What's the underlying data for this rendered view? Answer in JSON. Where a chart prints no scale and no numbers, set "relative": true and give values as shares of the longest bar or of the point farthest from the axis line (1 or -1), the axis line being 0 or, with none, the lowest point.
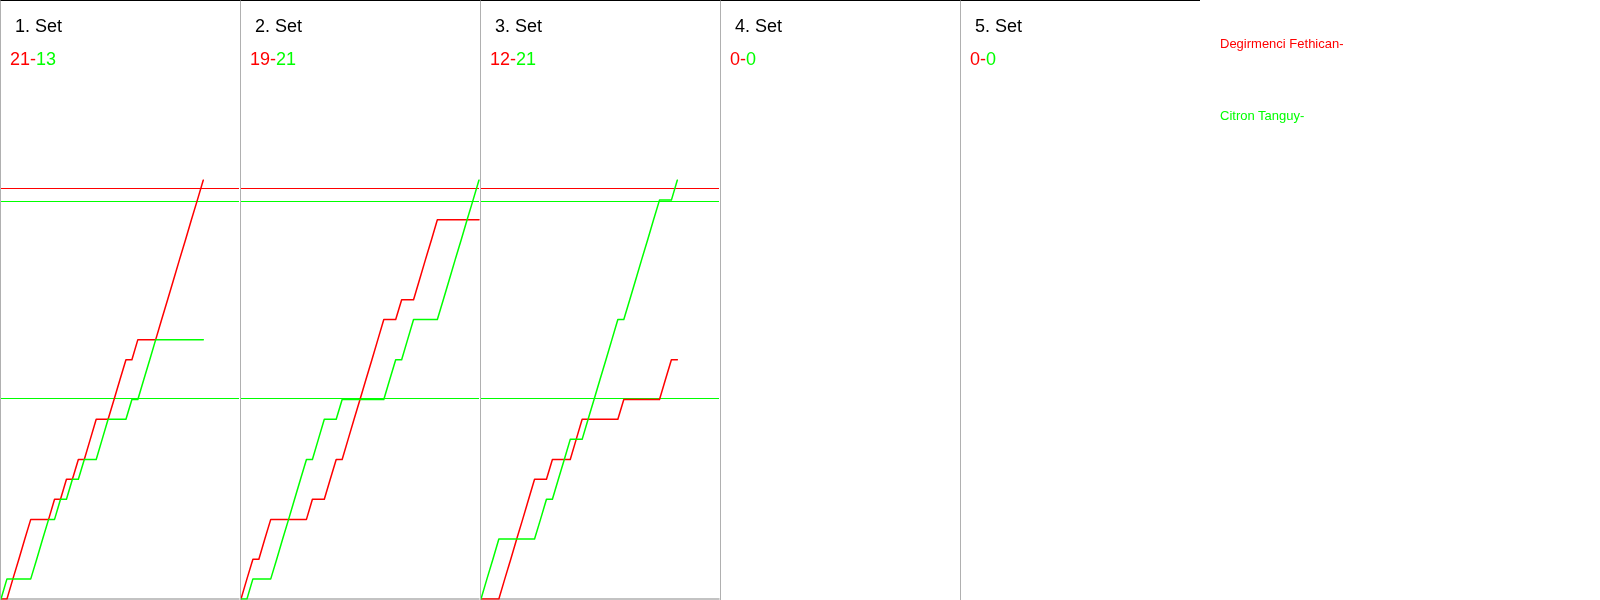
{
  "chart_data": [
    {
      "type": "line",
      "title": "1. Set",
      "annotations": [
        "21-",
        "13"
      ],
      "categories": [
        null,
        null,
        null,
        null,
        null,
        null,
        null,
        null,
        null,
        null,
        null,
        null,
        null,
        null,
        null,
        null,
        null,
        null,
        null,
        null,
        null,
        null,
        null,
        null,
        null,
        null,
        null,
        null,
        null,
        null,
        null,
        null,
        null,
        null,
        null,
        null,
        null,
        null,
        null,
        null,
        null
      ],
      "relative": true,
      "tick_labels": false,
      "ref_lines": [
        {
          "axis": "y",
          "value": 0.976,
          "color": "#ff0000"
        },
        {
          "axis": "y",
          "value": 0.952,
          "color": "#00ff00"
        },
        {
          "axis": "y",
          "value": 0.476,
          "color": "#00ff00"
        }
      ],
      "series": [
        {
          "name": "Degirmenci Fethican-",
          "color": "#ff0000",
          "values": [
            0,
            0,
            0.048,
            0.095,
            0.143,
            0.19,
            0.19,
            0.19,
            0.19,
            0.238,
            0.238,
            0.286,
            0.286,
            0.333,
            0.333,
            0.381,
            0.429,
            0.429,
            0.429,
            0.476,
            0.524,
            0.571,
            0.571,
            0.619,
            0.619,
            0.619,
            0.619,
            0.667,
            0.714,
            0.762,
            0.81,
            0.857,
            0.905,
            0.952,
            1,
            null,
            null,
            null,
            null,
            null,
            null
          ]
        },
        {
          "name": "Citron Tanguy-",
          "color": "#00ff00",
          "values": [
            0,
            0.048,
            0.048,
            0.048,
            0.048,
            0.048,
            0.095,
            0.143,
            0.19,
            0.19,
            0.238,
            0.238,
            0.286,
            0.286,
            0.333,
            0.333,
            0.333,
            0.381,
            0.429,
            0.429,
            0.429,
            0.429,
            0.476,
            0.476,
            0.524,
            0.571,
            0.619,
            0.619,
            0.619,
            0.619,
            0.619,
            0.619,
            0.619,
            0.619,
            0.619,
            null,
            null,
            null,
            null,
            null,
            null
          ]
        }
      ]
    },
    {
      "type": "line",
      "title": "2. Set",
      "annotations": [
        "19-",
        "21"
      ],
      "categories": [
        null,
        null,
        null,
        null,
        null,
        null,
        null,
        null,
        null,
        null,
        null,
        null,
        null,
        null,
        null,
        null,
        null,
        null,
        null,
        null,
        null,
        null,
        null,
        null,
        null,
        null,
        null,
        null,
        null,
        null,
        null,
        null,
        null,
        null,
        null,
        null,
        null,
        null,
        null,
        null,
        null
      ],
      "relative": true,
      "tick_labels": false,
      "ref_lines": [
        {
          "axis": "y",
          "value": 0.976,
          "color": "#ff0000"
        },
        {
          "axis": "y",
          "value": 0.952,
          "color": "#00ff00"
        },
        {
          "axis": "y",
          "value": 0.476,
          "color": "#00ff00"
        }
      ],
      "series": [
        {
          "color": "#ff0000",
          "values": [
            0,
            0.048,
            0.095,
            0.095,
            0.143,
            0.19,
            0.19,
            0.19,
            0.19,
            0.19,
            0.19,
            0.19,
            0.238,
            0.238,
            0.238,
            0.286,
            0.333,
            0.333,
            0.381,
            0.429,
            0.476,
            0.524,
            0.571,
            0.619,
            0.667,
            0.667,
            0.667,
            0.714,
            0.714,
            0.714,
            0.762,
            0.81,
            0.857,
            0.905,
            0.905,
            0.905,
            0.905,
            0.905,
            0.905,
            0.905,
            0.905
          ]
        },
        {
          "color": "#00ff00",
          "values": [
            0,
            0,
            0.048,
            0.048,
            0.048,
            0.048,
            0.095,
            0.143,
            0.19,
            0.238,
            0.286,
            0.333,
            0.333,
            0.381,
            0.429,
            0.429,
            0.429,
            0.476,
            0.476,
            0.476,
            0.476,
            0.476,
            0.476,
            0.476,
            0.476,
            0.524,
            0.571,
            0.571,
            0.619,
            0.667,
            0.667,
            0.667,
            0.667,
            0.667,
            0.714,
            0.762,
            0.81,
            0.857,
            0.905,
            0.952,
            1
          ]
        }
      ]
    },
    {
      "type": "line",
      "title": "3. Set",
      "annotations": [
        "12-",
        "21"
      ],
      "categories": [
        null,
        null,
        null,
        null,
        null,
        null,
        null,
        null,
        null,
        null,
        null,
        null,
        null,
        null,
        null,
        null,
        null,
        null,
        null,
        null,
        null,
        null,
        null,
        null,
        null,
        null,
        null,
        null,
        null,
        null,
        null,
        null,
        null,
        null,
        null,
        null,
        null,
        null,
        null,
        null,
        null
      ],
      "relative": true,
      "tick_labels": false,
      "ref_lines": [
        {
          "axis": "y",
          "value": 0.976,
          "color": "#ff0000"
        },
        {
          "axis": "y",
          "value": 0.952,
          "color": "#00ff00"
        },
        {
          "axis": "y",
          "value": 0.476,
          "color": "#00ff00"
        }
      ],
      "series": [
        {
          "color": "#ff0000",
          "values": [
            0,
            0,
            0,
            0,
            0.048,
            0.095,
            0.143,
            0.19,
            0.238,
            0.286,
            0.286,
            0.286,
            0.333,
            0.333,
            0.333,
            0.333,
            0.381,
            0.429,
            0.429,
            0.429,
            0.429,
            0.429,
            0.429,
            0.429,
            0.476,
            0.476,
            0.476,
            0.476,
            0.476,
            0.476,
            0.476,
            0.524,
            0.571,
            0.571,
            null,
            null,
            null,
            null,
            null,
            null,
            null
          ]
        },
        {
          "color": "#00ff00",
          "values": [
            0,
            0.048,
            0.095,
            0.143,
            0.143,
            0.143,
            0.143,
            0.143,
            0.143,
            0.143,
            0.19,
            0.238,
            0.238,
            0.286,
            0.333,
            0.381,
            0.381,
            0.381,
            0.429,
            0.476,
            0.524,
            0.571,
            0.619,
            0.667,
            0.667,
            0.714,
            0.762,
            0.81,
            0.857,
            0.905,
            0.952,
            0.952,
            0.952,
            1,
            null,
            null,
            null,
            null,
            null,
            null,
            null
          ]
        }
      ]
    },
    {
      "type": "other",
      "title": "4. Set",
      "annotations": [
        "0-",
        "0"
      ]
    },
    {
      "type": "other",
      "title": "5. Set",
      "annotations": [
        "0-",
        "0"
      ]
    }
  ]
}
